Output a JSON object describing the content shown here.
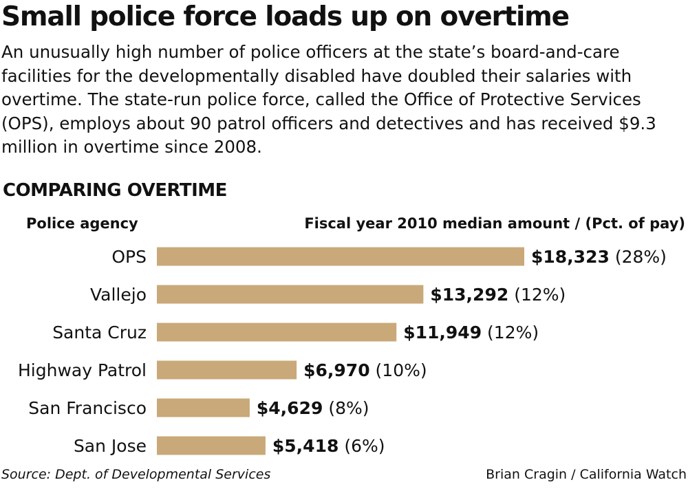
{
  "headline": "Small police force loads up on overtime",
  "intro": "An unusually high number of police officers at the state’s board-and-care facilities for the developmentally disabled have doubled their salaries with overtime. The state-run police force, called the Office of Protective Services (OPS), employs about 90 patrol officers and detectives and has received $9.3 million in overtime since 2008.",
  "section_title": "COMPARING OVERTIME",
  "column_left": "Police agency",
  "column_right": "Fiscal year 2010 median amount / (Pct. of pay)",
  "source": "Source: Dept. of Developmental Services",
  "credit": "Brian Cragin / California Watch",
  "colors": {
    "bar": "#c9a979",
    "text": "#111111"
  },
  "chart_data": {
    "type": "bar",
    "orientation": "horizontal",
    "categories": [
      "OPS",
      "Vallejo",
      "Santa Cruz",
      "Highway Patrol",
      "San Francisco",
      "San Jose"
    ],
    "values": [
      18323,
      13292,
      11949,
      6970,
      4629,
      5418
    ],
    "value_labels": [
      "$18,323",
      "$13,292",
      "$11,949",
      "$6,970",
      "$4,629",
      "$5,418"
    ],
    "pct_labels": [
      "(28%)",
      "(12%)",
      "(12%)",
      "(10%)",
      "(8%)",
      "(6%)"
    ],
    "xlim": [
      0,
      18323
    ],
    "grid": false,
    "legend": "none"
  }
}
